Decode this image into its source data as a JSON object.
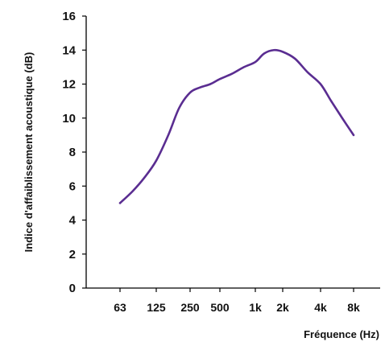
{
  "chart_data": {
    "type": "line",
    "title": "",
    "xlabel": "Fréquence (Hz)",
    "ylabel": "Indice d'affaiblissement acoustique (dB)",
    "xscale": "log",
    "x_tick_labels": [
      "63",
      "125",
      "250",
      "500",
      "1k",
      "2k",
      "4k",
      "8k"
    ],
    "x_tick_values": [
      63,
      125,
      250,
      500,
      1000,
      2000,
      4000,
      8000
    ],
    "y_ticks": [
      0,
      2,
      4,
      6,
      8,
      10,
      12,
      14,
      16
    ],
    "ylim": [
      0,
      16
    ],
    "grid": false,
    "series": [
      {
        "x": [
          63,
          80,
          100,
          125,
          160,
          200,
          250,
          315,
          400,
          500,
          630,
          800,
          1000,
          1250,
          1600,
          2000,
          2500,
          3150,
          4000,
          5000,
          6300,
          8000
        ],
        "values": [
          5.0,
          5.7,
          6.5,
          7.5,
          9.0,
          10.6,
          11.5,
          11.8,
          12.0,
          12.3,
          12.6,
          13.0,
          13.3,
          13.8,
          14.0,
          13.9,
          13.5,
          12.7,
          12.0,
          11.0,
          10.0,
          9.0
        ]
      }
    ],
    "colors": {
      "line": "#5a2d91",
      "axis": "#000000",
      "text": "#111111"
    }
  }
}
